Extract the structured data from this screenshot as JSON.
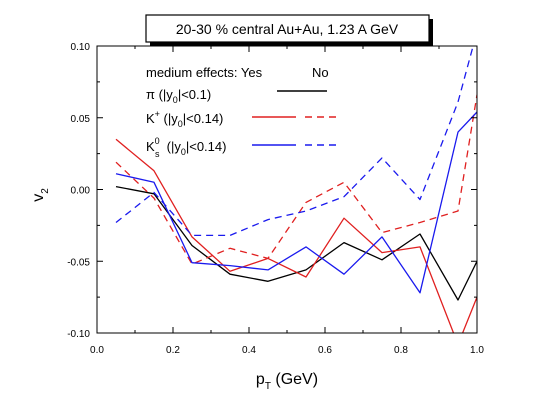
{
  "chart_data": {
    "type": "line",
    "title": "20-30 % central Au+Au, 1.23 A GeV",
    "xlabel": {
      "base": "p",
      "sub": "T",
      "rest": " (GeV)"
    },
    "ylabel": {
      "base": "v",
      "sub": "2"
    },
    "xlim": [
      0.0,
      1.0
    ],
    "ylim": [
      -0.1,
      0.1
    ],
    "xticks": [
      "0.0",
      "0.2",
      "0.4",
      "0.6",
      "0.8",
      "1.0"
    ],
    "yticks": [
      "-0.10",
      "-0.05",
      "0.00",
      "0.05",
      "0.10"
    ],
    "legend": {
      "header": {
        "left": "medium effects: Yes",
        "right": "No"
      },
      "entries": [
        {
          "key": "pion",
          "base": "π (|y",
          "sub": "0",
          "rest": "|<0.1)"
        },
        {
          "key": "kplus",
          "base": "K",
          "sup": "+",
          "mid": " (|y",
          "sub": "0",
          "rest": "|<0.14)"
        },
        {
          "key": "k0s",
          "base": "K",
          "sup": "0",
          "sub2": "s",
          "mid": " (|y",
          "sub": "0",
          "rest": "|<0.14)"
        }
      ]
    },
    "colors": {
      "pion": "#000000",
      "kplus": "#e02020",
      "k0s": "#1a1aee"
    },
    "series": [
      {
        "key": "pion-yes",
        "color": "#000000",
        "dashed": false,
        "x": [
          0.05,
          0.15,
          0.25,
          0.35,
          0.45,
          0.55,
          0.65,
          0.75,
          0.85,
          0.95,
          1.0
        ],
        "y": [
          0.002,
          -0.003,
          -0.039,
          -0.059,
          -0.064,
          -0.056,
          -0.037,
          -0.049,
          -0.031,
          -0.077,
          -0.05
        ]
      },
      {
        "key": "kplus-yes",
        "color": "#e02020",
        "dashed": false,
        "x": [
          0.05,
          0.15,
          0.25,
          0.35,
          0.45,
          0.55,
          0.65,
          0.75,
          0.85,
          0.95,
          1.0
        ],
        "y": [
          0.035,
          0.013,
          -0.033,
          -0.057,
          -0.048,
          -0.061,
          -0.02,
          -0.044,
          -0.04,
          -0.108,
          -0.075
        ]
      },
      {
        "key": "kplus-no",
        "color": "#e02020",
        "dashed": true,
        "x": [
          0.05,
          0.15,
          0.25,
          0.35,
          0.45,
          0.55,
          0.65,
          0.75,
          0.85,
          0.95,
          1.0
        ],
        "y": [
          0.019,
          -0.006,
          -0.052,
          -0.041,
          -0.048,
          -0.009,
          0.005,
          -0.03,
          -0.023,
          -0.015,
          0.066
        ]
      },
      {
        "key": "k0s-yes",
        "color": "#1a1aee",
        "dashed": false,
        "x": [
          0.05,
          0.15,
          0.25,
          0.35,
          0.45,
          0.55,
          0.65,
          0.75,
          0.85,
          0.95,
          1.0
        ],
        "y": [
          0.011,
          0.005,
          -0.051,
          -0.053,
          -0.056,
          -0.04,
          -0.059,
          -0.033,
          -0.072,
          0.04,
          0.054
        ]
      },
      {
        "key": "k0s-no",
        "color": "#1a1aee",
        "dashed": true,
        "x": [
          0.05,
          0.15,
          0.25,
          0.35,
          0.45,
          0.55,
          0.65,
          0.75,
          0.85,
          0.95,
          1.0
        ],
        "y": [
          -0.023,
          -0.002,
          -0.032,
          -0.032,
          -0.021,
          -0.015,
          -0.005,
          0.022,
          -0.007,
          0.061,
          0.11
        ]
      }
    ]
  }
}
